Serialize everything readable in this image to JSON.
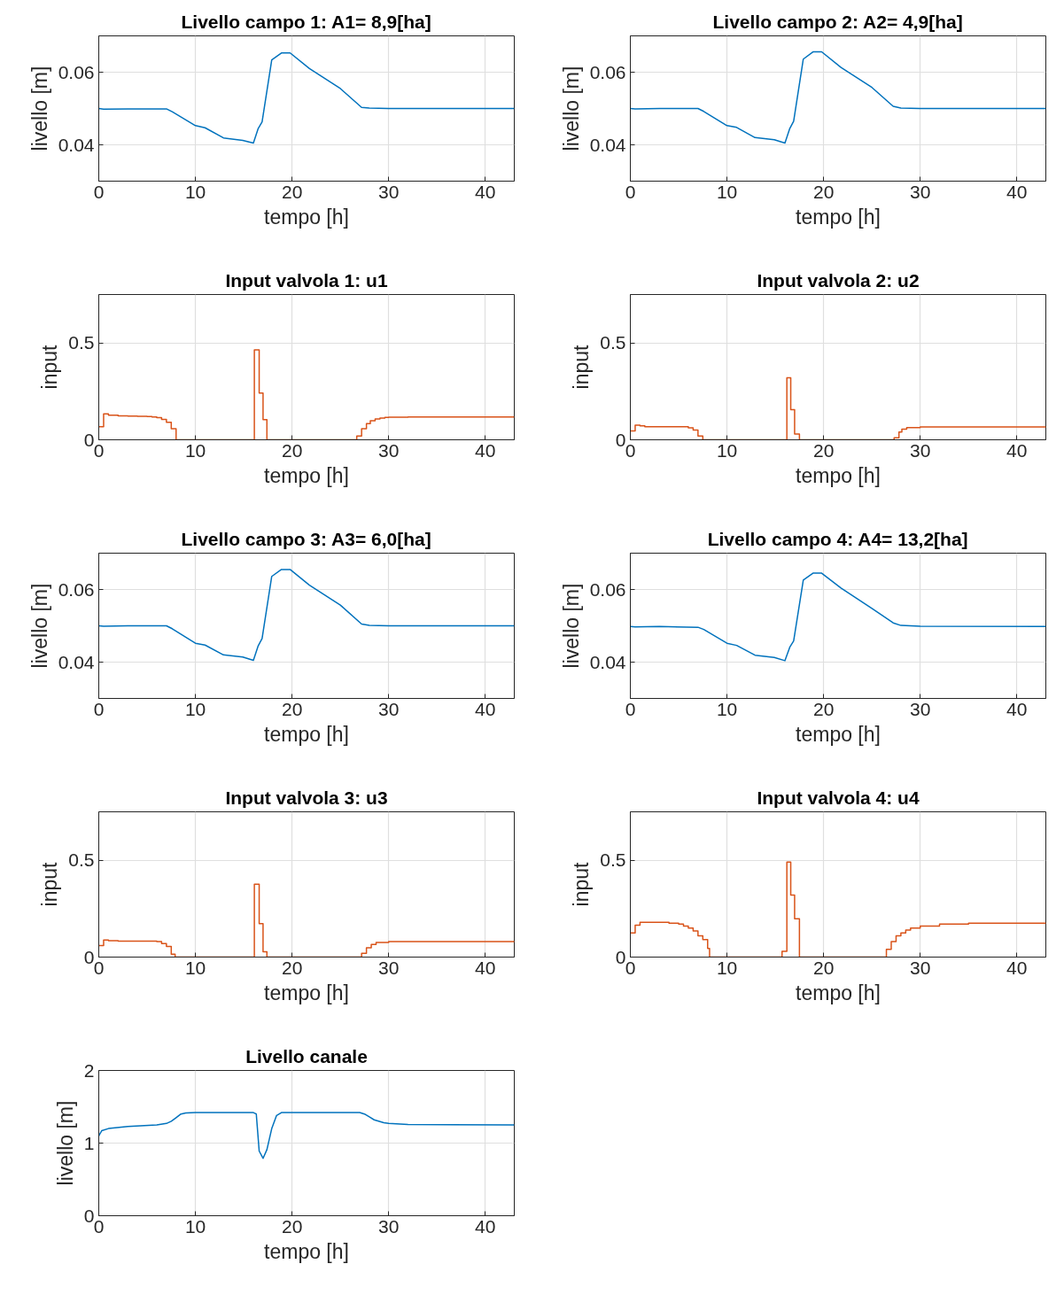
{
  "chart_data": [
    {
      "type": "line",
      "title": "Livello campo 1: A1= 8,9[ha]",
      "xlabel": "tempo [h]",
      "ylabel": "livello [m]",
      "xlim": [
        0,
        43
      ],
      "ylim": [
        0.03,
        0.07
      ],
      "xticks": [
        0,
        10,
        20,
        30,
        40
      ],
      "yticks": [
        0.04,
        0.06
      ],
      "grid": true,
      "series": [
        {
          "color": "#0072bd",
          "x": [
            0,
            0.5,
            3,
            7,
            7.6,
            10,
            11,
            12.9,
            14.9,
            16,
            16.5,
            16.9,
            17.9,
            18.9,
            19.8,
            21.8,
            25,
            27.2,
            28,
            30,
            43
          ],
          "values": [
            0.05,
            0.0498,
            0.0499,
            0.0499,
            0.0491,
            0.0453,
            0.0447,
            0.0419,
            0.0412,
            0.0405,
            0.0445,
            0.0463,
            0.0634,
            0.0653,
            0.0653,
            0.061,
            0.0555,
            0.0503,
            0.0501,
            0.05,
            0.05
          ]
        }
      ]
    },
    {
      "type": "line",
      "title": "Livello campo 2: A2= 4,9[ha]",
      "xlabel": "tempo [h]",
      "ylabel": "livello [m]",
      "xlim": [
        0,
        43
      ],
      "ylim": [
        0.03,
        0.07
      ],
      "xticks": [
        0,
        10,
        20,
        30,
        40
      ],
      "yticks": [
        0.04,
        0.06
      ],
      "grid": true,
      "series": [
        {
          "color": "#0072bd",
          "x": [
            0,
            0.5,
            3,
            7,
            7.6,
            10,
            11,
            12.9,
            14.9,
            16,
            16.5,
            16.9,
            17.9,
            18.9,
            19.8,
            21.8,
            25,
            27.2,
            28,
            30,
            43
          ],
          "values": [
            0.05,
            0.0499,
            0.05,
            0.05,
            0.0492,
            0.0453,
            0.0448,
            0.042,
            0.0414,
            0.0405,
            0.0445,
            0.0465,
            0.0636,
            0.0656,
            0.0656,
            0.0613,
            0.0558,
            0.0506,
            0.0501,
            0.05,
            0.05
          ]
        }
      ]
    },
    {
      "type": "step",
      "title": "Input valvola 1: u1",
      "xlabel": "tempo [h]",
      "ylabel": "input",
      "xlim": [
        0,
        43
      ],
      "ylim": [
        0,
        0.75
      ],
      "xticks": [
        0,
        10,
        20,
        30,
        40
      ],
      "yticks": [
        0,
        0.5
      ],
      "grid": true,
      "series": [
        {
          "color": "#d95319",
          "x": [
            0,
            0.5,
            1,
            2,
            3,
            4,
            5,
            5.5,
            6,
            6.5,
            7,
            7.5,
            8,
            16.1,
            16.6,
            17,
            17.4,
            26.7,
            27.2,
            27.7,
            28.1,
            28.6,
            29.1,
            29.6,
            30,
            32,
            43
          ],
          "values": [
            0.068,
            0.134,
            0.127,
            0.124,
            0.122,
            0.121,
            0.12,
            0.118,
            0.114,
            0.105,
            0.09,
            0.057,
            0,
            0.464,
            0.241,
            0.104,
            0,
            0.02,
            0.057,
            0.084,
            0.098,
            0.107,
            0.112,
            0.115,
            0.117,
            0.118,
            0.118
          ]
        }
      ]
    },
    {
      "type": "step",
      "title": "Input valvola 2: u2",
      "xlabel": "tempo [h]",
      "ylabel": "input",
      "xlim": [
        0,
        43
      ],
      "ylim": [
        0,
        0.75
      ],
      "xticks": [
        0,
        10,
        20,
        30,
        40
      ],
      "yticks": [
        0,
        0.5
      ],
      "grid": true,
      "series": [
        {
          "color": "#d95319",
          "x": [
            0,
            0.5,
            1,
            1.5,
            6,
            6.5,
            7,
            7.5,
            16.2,
            16.6,
            17,
            17.5,
            27.3,
            27.8,
            28.1,
            28.6,
            30,
            43
          ],
          "values": [
            0.046,
            0.076,
            0.072,
            0.068,
            0.062,
            0.05,
            0.02,
            0,
            0.32,
            0.156,
            0.03,
            0,
            0.01,
            0.04,
            0.055,
            0.063,
            0.066,
            0.067
          ]
        }
      ]
    },
    {
      "type": "line",
      "title": "Livello campo 3: A3= 6,0[ha]",
      "xlabel": "tempo [h]",
      "ylabel": "livello [m]",
      "xlim": [
        0,
        43
      ],
      "ylim": [
        0.03,
        0.07
      ],
      "xticks": [
        0,
        10,
        20,
        30,
        40
      ],
      "yticks": [
        0.04,
        0.06
      ],
      "grid": true,
      "series": [
        {
          "color": "#0072bd",
          "x": [
            0,
            0.5,
            3,
            7,
            7.6,
            10,
            11,
            12.9,
            14.9,
            16,
            16.5,
            16.9,
            17.9,
            18.9,
            19.8,
            21.8,
            25,
            27.2,
            28,
            30,
            43
          ],
          "values": [
            0.05,
            0.0499,
            0.05,
            0.05,
            0.0492,
            0.0452,
            0.0447,
            0.042,
            0.0414,
            0.0405,
            0.0445,
            0.0465,
            0.0636,
            0.0655,
            0.0655,
            0.0612,
            0.0557,
            0.0505,
            0.0501,
            0.05,
            0.05
          ]
        }
      ]
    },
    {
      "type": "line",
      "title": "Livello campo 4: A4= 13,2[ha]",
      "xlabel": "tempo [h]",
      "ylabel": "livello [m]",
      "xlim": [
        0,
        43
      ],
      "ylim": [
        0.03,
        0.07
      ],
      "xticks": [
        0,
        10,
        20,
        30,
        40
      ],
      "yticks": [
        0.04,
        0.06
      ],
      "grid": true,
      "series": [
        {
          "color": "#0072bd",
          "x": [
            0,
            0.5,
            3,
            7,
            7.6,
            10,
            11,
            12.9,
            14.9,
            16,
            16.5,
            16.9,
            17.9,
            18.9,
            19.8,
            21.8,
            25,
            27.2,
            28,
            30,
            43
          ],
          "values": [
            0.0498,
            0.0497,
            0.0498,
            0.0496,
            0.049,
            0.0452,
            0.0446,
            0.0419,
            0.0413,
            0.0404,
            0.0441,
            0.0458,
            0.0626,
            0.0645,
            0.0645,
            0.0604,
            0.0548,
            0.0508,
            0.0501,
            0.0499,
            0.0498
          ]
        }
      ]
    },
    {
      "type": "step",
      "title": "Input valvola 3: u3",
      "xlabel": "tempo [h]",
      "ylabel": "input",
      "xlim": [
        0,
        43
      ],
      "ylim": [
        0,
        0.75
      ],
      "xticks": [
        0,
        10,
        20,
        30,
        40
      ],
      "yticks": [
        0,
        0.5
      ],
      "grid": true,
      "series": [
        {
          "color": "#d95319",
          "x": [
            0,
            0.5,
            1,
            2,
            6,
            6.5,
            7,
            7.5,
            7.9,
            16.1,
            16.6,
            17,
            17.4,
            27.2,
            27.7,
            28.2,
            28.7,
            30,
            43
          ],
          "values": [
            0.059,
            0.088,
            0.085,
            0.082,
            0.08,
            0.07,
            0.055,
            0.015,
            0,
            0.376,
            0.173,
            0.027,
            0,
            0.02,
            0.048,
            0.065,
            0.075,
            0.08,
            0.082
          ]
        }
      ]
    },
    {
      "type": "step",
      "title": "Input valvola 4: u4",
      "xlabel": "tempo [h]",
      "ylabel": "input",
      "xlim": [
        0,
        43
      ],
      "ylim": [
        0,
        0.75
      ],
      "xticks": [
        0,
        10,
        20,
        30,
        40
      ],
      "yticks": [
        0,
        0.5
      ],
      "grid": true,
      "series": [
        {
          "color": "#d95319",
          "x": [
            0,
            0.5,
            1,
            4,
            5,
            5.5,
            6,
            6.5,
            7,
            7.5,
            8,
            8.2,
            15.7,
            16.2,
            16.6,
            17,
            17.5,
            26.5,
            27,
            27.5,
            28,
            28.5,
            29,
            30,
            32,
            35,
            43
          ],
          "values": [
            0.125,
            0.165,
            0.18,
            0.175,
            0.17,
            0.16,
            0.15,
            0.135,
            0.11,
            0.09,
            0.045,
            0,
            0.03,
            0.491,
            0.32,
            0.198,
            0,
            0.04,
            0.08,
            0.11,
            0.125,
            0.14,
            0.15,
            0.16,
            0.17,
            0.175,
            0.177
          ]
        }
      ]
    },
    {
      "type": "line",
      "title": "Livello canale",
      "xlabel": "tempo [h]",
      "ylabel": "livello [m]",
      "xlim": [
        0,
        43
      ],
      "ylim": [
        0,
        2
      ],
      "xticks": [
        0,
        10,
        20,
        30,
        40
      ],
      "yticks": [
        0,
        1,
        2
      ],
      "grid": true,
      "series": [
        {
          "color": "#0072bd",
          "x": [
            0,
            0.3,
            1,
            3,
            6,
            7,
            7.5,
            8,
            8.5,
            9,
            10,
            16,
            16.3,
            16.6,
            17,
            17.4,
            17.9,
            18.4,
            18.9,
            20,
            27,
            27.5,
            28,
            28.5,
            29.5,
            30,
            32,
            43
          ],
          "values": [
            1.1,
            1.17,
            1.2,
            1.23,
            1.25,
            1.27,
            1.3,
            1.35,
            1.4,
            1.415,
            1.42,
            1.42,
            1.4,
            0.89,
            0.79,
            0.91,
            1.2,
            1.38,
            1.42,
            1.42,
            1.42,
            1.4,
            1.36,
            1.32,
            1.28,
            1.27,
            1.255,
            1.25
          ]
        }
      ]
    }
  ]
}
